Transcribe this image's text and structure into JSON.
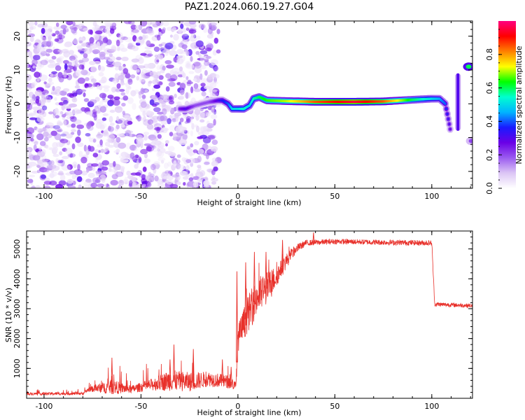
{
  "figure": {
    "title": "PAZ1.2024.060.19.27.G04"
  },
  "chart_data": [
    {
      "type": "heatmap",
      "xlabel": "Height of straight line (km)",
      "ylabel": "Frequency (Hz)",
      "xlim": [
        -109,
        121
      ],
      "ylim": [
        -25,
        24.5
      ],
      "xticks": [
        -100,
        -50,
        0,
        50,
        100
      ],
      "yticks": [
        -20,
        -10,
        0,
        10,
        20
      ],
      "colorbar": {
        "label": "Normalized spectral amplitude",
        "range": [
          0,
          1
        ],
        "ticks": [
          0.0,
          0.2,
          0.4,
          0.6,
          0.8
        ],
        "colormap": [
          "#ffffff",
          "#dcc6f5",
          "#9b5cf0",
          "#6a00e6",
          "#1a1aff",
          "#00b4ff",
          "#00ffd0",
          "#00ff00",
          "#ffff00",
          "#ff8000",
          "#ff0000",
          "#ff0080"
        ]
      },
      "noise_region": {
        "x_from": -109,
        "x_to": -10,
        "f_from": -25,
        "f_to": 24.5
      },
      "ridge": [
        {
          "x": -30,
          "f": -1.5,
          "amp": 0.25
        },
        {
          "x": -27,
          "f": -1.5,
          "amp": 0.3
        },
        {
          "x": -22,
          "f": -0.5,
          "amp": 0.2
        },
        {
          "x": -15,
          "f": 0.5,
          "amp": 0.2
        },
        {
          "x": -10,
          "f": 1.0,
          "amp": 0.3
        },
        {
          "x": -8,
          "f": 1.0,
          "amp": 0.35
        },
        {
          "x": -5,
          "f": 0.0,
          "amp": 0.4
        },
        {
          "x": -3,
          "f": -1.5,
          "amp": 0.5
        },
        {
          "x": 0,
          "f": -1.5,
          "amp": 0.5
        },
        {
          "x": 3,
          "f": -1.5,
          "amp": 0.55
        },
        {
          "x": 6,
          "f": -0.5,
          "amp": 0.5
        },
        {
          "x": 8,
          "f": 1.5,
          "amp": 0.55
        },
        {
          "x": 11,
          "f": 2.0,
          "amp": 0.6
        },
        {
          "x": 15,
          "f": 1.0,
          "amp": 0.65
        },
        {
          "x": 25,
          "f": 0.8,
          "amp": 0.7
        },
        {
          "x": 40,
          "f": 0.6,
          "amp": 0.85
        },
        {
          "x": 60,
          "f": 0.6,
          "amp": 0.95
        },
        {
          "x": 75,
          "f": 0.7,
          "amp": 0.85
        },
        {
          "x": 90,
          "f": 1.2,
          "amp": 0.6
        },
        {
          "x": 100,
          "f": 1.5,
          "amp": 0.5
        },
        {
          "x": 104,
          "f": 1.5,
          "amp": 0.45
        },
        {
          "x": 107,
          "f": 0.0,
          "amp": 0.4
        },
        {
          "x": 108,
          "f": -3.0,
          "amp": 0.35
        },
        {
          "x": 109,
          "f": -6.0,
          "amp": 0.3
        },
        {
          "x": 110,
          "f": -9.0,
          "amp": 0.25
        }
      ],
      "side_features": [
        {
          "x": 113.5,
          "f_from": -8,
          "f_to": 9,
          "amp": 0.3
        },
        {
          "x": 119,
          "f": 11,
          "amp": 0.6
        },
        {
          "x": 120.5,
          "f": -11,
          "amp": 0.2
        }
      ]
    },
    {
      "type": "line",
      "xlabel": "Height of straight line (km)",
      "ylabel": "SNR (10 * v/v)",
      "xlim": [
        -109,
        121
      ],
      "ylim": [
        0,
        5600
      ],
      "xticks": [
        -100,
        -50,
        0,
        50,
        100
      ],
      "yticks": [
        1000,
        2000,
        3000,
        4000,
        5000
      ],
      "color": "#e8302a",
      "envelope": [
        {
          "x": -109,
          "base": 150,
          "noise": 90
        },
        {
          "x": -80,
          "base": 160,
          "noise": 100
        },
        {
          "x": -77,
          "base": 300,
          "noise": 150
        },
        {
          "x": -70,
          "base": 350,
          "noise": 350
        },
        {
          "x": -65,
          "base": 380,
          "noise": 500
        },
        {
          "x": -55,
          "base": 300,
          "noise": 250
        },
        {
          "x": -45,
          "base": 450,
          "noise": 400
        },
        {
          "x": -35,
          "base": 600,
          "noise": 700
        },
        {
          "x": -25,
          "base": 550,
          "noise": 650
        },
        {
          "x": -15,
          "base": 650,
          "noise": 500
        },
        {
          "x": -5,
          "base": 550,
          "noise": 450
        },
        {
          "x": -1,
          "base": 400,
          "noise": 300
        },
        {
          "x": 0,
          "base": 2000,
          "noise": 900
        },
        {
          "x": 5,
          "base": 2800,
          "noise": 1200
        },
        {
          "x": 10,
          "base": 3400,
          "noise": 1300
        },
        {
          "x": 15,
          "base": 3700,
          "noise": 1100
        },
        {
          "x": 20,
          "base": 4100,
          "noise": 700
        },
        {
          "x": 25,
          "base": 4600,
          "noise": 500
        },
        {
          "x": 30,
          "base": 5000,
          "noise": 300
        },
        {
          "x": 35,
          "base": 5200,
          "noise": 200
        },
        {
          "x": 50,
          "base": 5250,
          "noise": 180
        },
        {
          "x": 75,
          "base": 5220,
          "noise": 180
        },
        {
          "x": 100,
          "base": 5200,
          "noise": 180
        },
        {
          "x": 101.5,
          "base": 3150,
          "noise": 150
        },
        {
          "x": 121,
          "base": 3100,
          "noise": 140
        }
      ],
      "spikes": [
        {
          "x": -65,
          "y": 1360
        },
        {
          "x": -35,
          "y": 1300
        },
        {
          "x": -33,
          "y": 1800
        },
        {
          "x": -23,
          "y": 1650
        },
        {
          "x": -8,
          "y": 1300
        },
        {
          "x": -3.5,
          "y": 1050
        },
        {
          "x": -0.5,
          "y": 4250
        },
        {
          "x": 4,
          "y": 4550
        },
        {
          "x": 8.5,
          "y": 4900
        },
        {
          "x": 14.5,
          "y": 4900
        },
        {
          "x": 23,
          "y": 5300
        },
        {
          "x": 39,
          "y": 5550
        }
      ]
    }
  ]
}
